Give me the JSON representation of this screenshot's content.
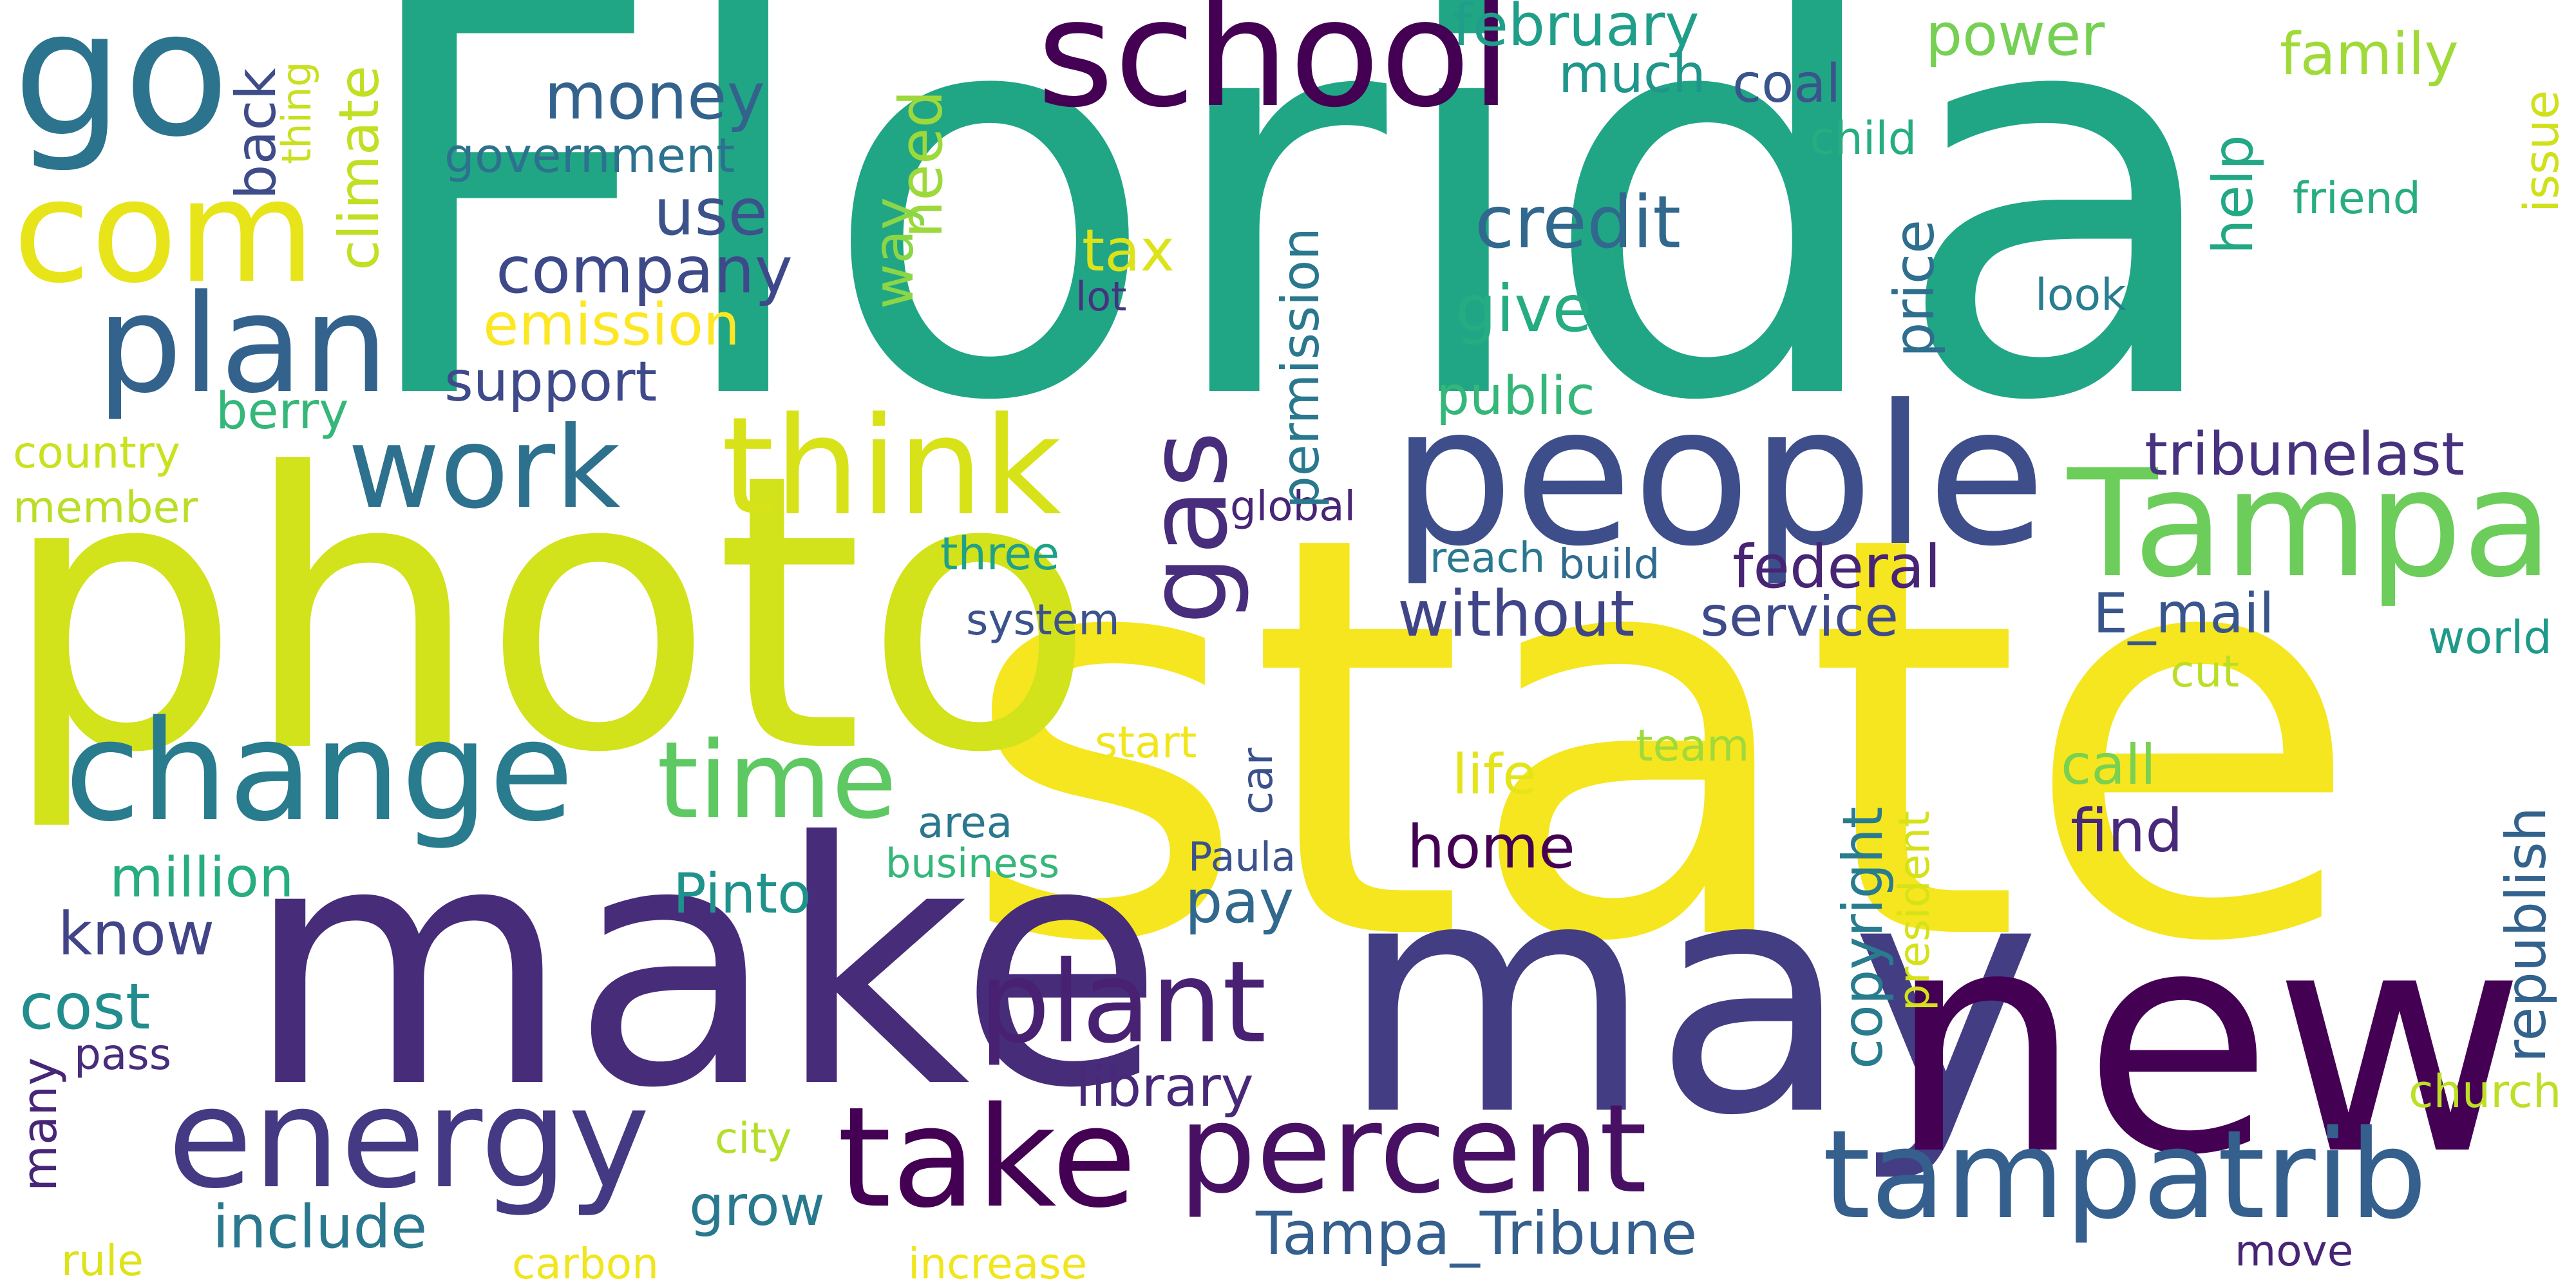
{
  "words": [
    {
      "text": "Florida",
      "color": "#21a685",
      "vertical": false
    },
    {
      "text": "state",
      "color": "#f5e61f",
      "vertical": false
    },
    {
      "text": "photo",
      "color": "#d2e21b",
      "vertical": false
    },
    {
      "text": "make",
      "color": "#472c7a",
      "vertical": false
    },
    {
      "text": "may",
      "color": "#433d84",
      "vertical": false
    },
    {
      "text": "new",
      "color": "#440154",
      "vertical": false
    },
    {
      "text": "people",
      "color": "#3d4e8a",
      "vertical": false
    },
    {
      "text": "go",
      "color": "#2c738e",
      "vertical": false
    },
    {
      "text": "school",
      "color": "#440154",
      "vertical": false
    },
    {
      "text": "com",
      "color": "#e7e419",
      "vertical": false
    },
    {
      "text": "plan",
      "color": "#33628d",
      "vertical": false
    },
    {
      "text": "think",
      "color": "#d8e219",
      "vertical": false
    },
    {
      "text": "work",
      "color": "#2d718e",
      "vertical": false
    },
    {
      "text": "change",
      "color": "#297b8e",
      "vertical": false
    },
    {
      "text": "Tampa",
      "color": "#6ccd5a",
      "vertical": false
    },
    {
      "text": "energy",
      "color": "#443983",
      "vertical": false
    },
    {
      "text": "take",
      "color": "#440154",
      "vertical": false
    },
    {
      "text": "percent",
      "color": "#471063",
      "vertical": false
    },
    {
      "text": "tampatrib",
      "color": "#355f8d",
      "vertical": false
    },
    {
      "text": "plant",
      "color": "#482173",
      "vertical": false
    },
    {
      "text": "time",
      "color": "#5ec962",
      "vertical": false
    },
    {
      "text": "gas",
      "color": "#472d7b",
      "vertical": true
    },
    {
      "text": "credit",
      "color": "#31688e",
      "vertical": false
    },
    {
      "text": "money",
      "color": "#33638d",
      "vertical": false
    },
    {
      "text": "government",
      "color": "#2c728e",
      "vertical": false
    },
    {
      "text": "use",
      "color": "#3b528b",
      "vertical": false
    },
    {
      "text": "company",
      "color": "#3e4989",
      "vertical": false
    },
    {
      "text": "emission",
      "color": "#fde725",
      "vertical": false
    },
    {
      "text": "support",
      "color": "#3e4a89",
      "vertical": false
    },
    {
      "text": "give",
      "color": "#25ac82",
      "vertical": false
    },
    {
      "text": "public",
      "color": "#35b779",
      "vertical": false
    },
    {
      "text": "tax",
      "color": "#dde318",
      "vertical": false
    },
    {
      "text": "lot",
      "color": "#46337f",
      "vertical": false
    },
    {
      "text": "need",
      "color": "#9dd93b",
      "vertical": true
    },
    {
      "text": "way",
      "color": "#8bd646",
      "vertical": true
    },
    {
      "text": "february",
      "color": "#1f9e89",
      "vertical": false
    },
    {
      "text": "much",
      "color": "#1f958b",
      "vertical": false
    },
    {
      "text": "coal",
      "color": "#3a548c",
      "vertical": false
    },
    {
      "text": "power",
      "color": "#75d054",
      "vertical": false
    },
    {
      "text": "family",
      "color": "#a0da39",
      "vertical": false
    },
    {
      "text": "child",
      "color": "#26ad81",
      "vertical": false
    },
    {
      "text": "friend",
      "color": "#27ad81",
      "vertical": false
    },
    {
      "text": "look",
      "color": "#287d8e",
      "vertical": false
    },
    {
      "text": "help",
      "color": "#22a884",
      "vertical": true
    },
    {
      "text": "price",
      "color": "#2e6e8e",
      "vertical": true
    },
    {
      "text": "issue",
      "color": "#d0e11c",
      "vertical": true
    },
    {
      "text": "permission",
      "color": "#2a788e",
      "vertical": true
    },
    {
      "text": "climate",
      "color": "#c2df23",
      "vertical": true
    },
    {
      "text": "back",
      "color": "#3e4c8a",
      "vertical": true
    },
    {
      "text": "thing",
      "color": "#c8e020",
      "vertical": true
    },
    {
      "text": "berry",
      "color": "#35b779",
      "vertical": false
    },
    {
      "text": "country",
      "color": "#cae11f",
      "vertical": false
    },
    {
      "text": "member",
      "color": "#bade28",
      "vertical": false
    },
    {
      "text": "tribunelast",
      "color": "#46327e",
      "vertical": false
    },
    {
      "text": "federal",
      "color": "#482475",
      "vertical": false
    },
    {
      "text": "without",
      "color": "#404588",
      "vertical": false
    },
    {
      "text": "service",
      "color": "#3e4a89",
      "vertical": false
    },
    {
      "text": "E_mail",
      "color": "#39568c",
      "vertical": false
    },
    {
      "text": "world",
      "color": "#1f9a8a",
      "vertical": false
    },
    {
      "text": "reach",
      "color": "#2a788e",
      "vertical": false
    },
    {
      "text": "build",
      "color": "#306a8e",
      "vertical": false
    },
    {
      "text": "global",
      "color": "#482576",
      "vertical": false
    },
    {
      "text": "three",
      "color": "#1fa088",
      "vertical": false
    },
    {
      "text": "system",
      "color": "#3b528b",
      "vertical": false
    },
    {
      "text": "cut",
      "color": "#bade28",
      "vertical": false
    },
    {
      "text": "start",
      "color": "#f1e51d",
      "vertical": false
    },
    {
      "text": "team",
      "color": "#9fda3a",
      "vertical": false
    },
    {
      "text": "life",
      "color": "#e5e419",
      "vertical": false
    },
    {
      "text": "call",
      "color": "#7ad151",
      "vertical": false
    },
    {
      "text": "car",
      "color": "#3b518b",
      "vertical": true
    },
    {
      "text": "home",
      "color": "#440154",
      "vertical": false
    },
    {
      "text": "find",
      "color": "#482979",
      "vertical": false
    },
    {
      "text": "copyright",
      "color": "#287c8e",
      "vertical": true
    },
    {
      "text": "president",
      "color": "#d5e21a",
      "vertical": true
    },
    {
      "text": "republish",
      "color": "#33638d",
      "vertical": true
    },
    {
      "text": "area",
      "color": "#2a788e",
      "vertical": false
    },
    {
      "text": "business",
      "color": "#35b779",
      "vertical": false
    },
    {
      "text": "Paula",
      "color": "#3b528b",
      "vertical": false
    },
    {
      "text": "Pinto",
      "color": "#20928c",
      "vertical": false
    },
    {
      "text": "pay",
      "color": "#31688e",
      "vertical": false
    },
    {
      "text": "million",
      "color": "#27ad81",
      "vertical": false
    },
    {
      "text": "know",
      "color": "#414487",
      "vertical": false
    },
    {
      "text": "cost",
      "color": "#228d8d",
      "vertical": false
    },
    {
      "text": "pass",
      "color": "#472d7b",
      "vertical": false
    },
    {
      "text": "many",
      "color": "#482677",
      "vertical": true
    },
    {
      "text": "library",
      "color": "#482878",
      "vertical": false
    },
    {
      "text": "church",
      "color": "#bddf26",
      "vertical": false
    },
    {
      "text": "move",
      "color": "#482475",
      "vertical": false
    },
    {
      "text": "city",
      "color": "#b5de2b",
      "vertical": false
    },
    {
      "text": "include",
      "color": "#2a788e",
      "vertical": false
    },
    {
      "text": "grow",
      "color": "#29798e",
      "vertical": false
    },
    {
      "text": "Tampa_Tribune",
      "color": "#355f8d",
      "vertical": false
    },
    {
      "text": "rule",
      "color": "#dde318",
      "vertical": false
    },
    {
      "text": "carbon",
      "color": "#f1e51d",
      "vertical": false
    },
    {
      "text": "increase",
      "color": "#f1e51d",
      "vertical": false
    }
  ]
}
